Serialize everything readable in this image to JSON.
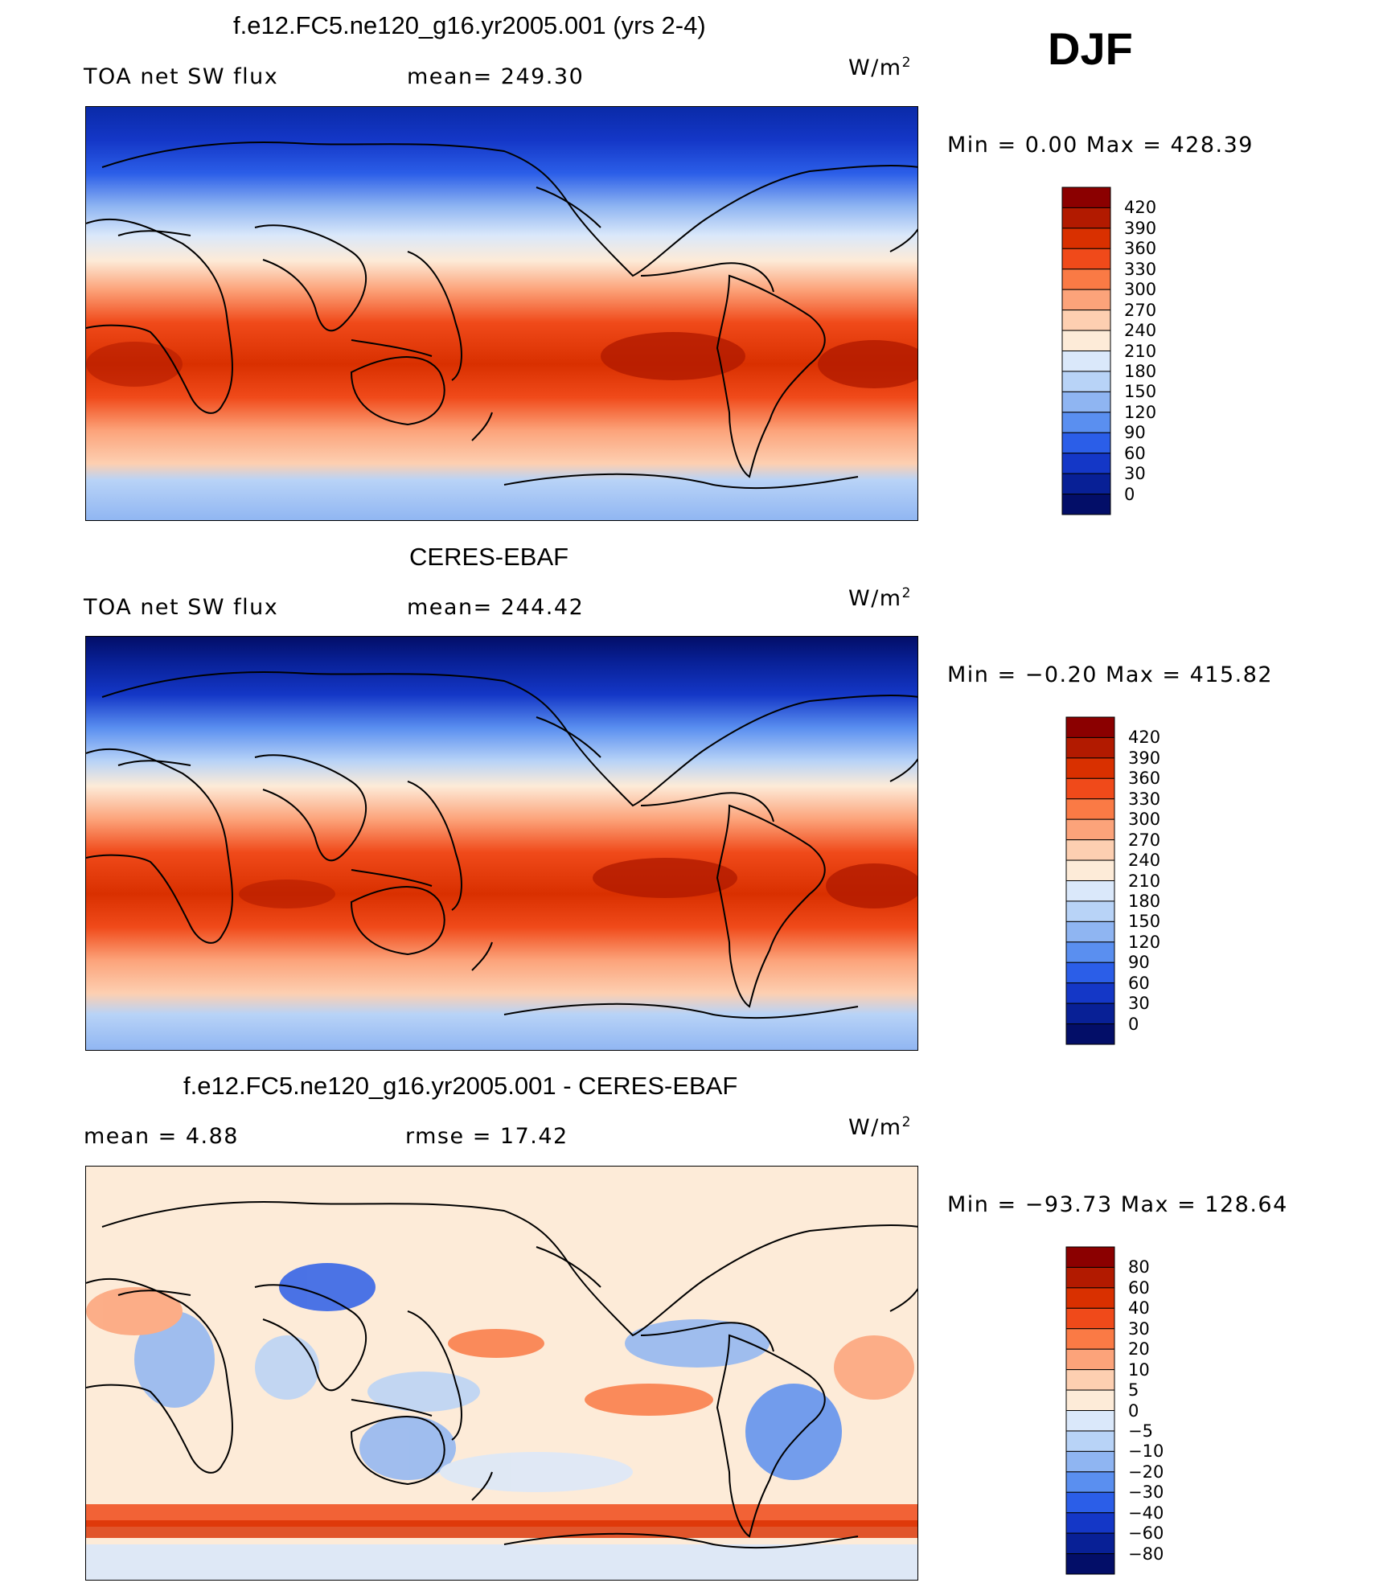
{
  "season": "DJF",
  "panels": [
    {
      "title": "f.e12.FC5.ne120_g16.yr2005.001 (yrs 2-4)",
      "left_label": "TOA net SW flux",
      "center_label": "mean= 249.30",
      "units": "W/m",
      "units_sup": "2",
      "minmax": "Min =    0.00 Max = 428.39"
    },
    {
      "title": "CERES-EBAF",
      "left_label": "TOA net SW flux",
      "center_label": "mean= 244.42",
      "units": "W/m",
      "units_sup": "2",
      "minmax": "Min =  −0.20 Max = 415.82"
    },
    {
      "title": "f.e12.FC5.ne120_g16.yr2005.001 - CERES-EBAF",
      "left_label": "mean =    4.88",
      "center_label": "rmse =   17.42",
      "units": "W/m",
      "units_sup": "2",
      "minmax": "Min = −93.73 Max = 128.64"
    }
  ],
  "chart_data": [
    {
      "type": "heatmap",
      "title": "f.e12.FC5.ne120_g16.yr2005.001 (yrs 2-4)",
      "variable": "TOA net SW flux",
      "mean": 249.3,
      "units": "W/m2",
      "min": 0.0,
      "max": 428.39,
      "colorbar_levels": [
        "420",
        "390",
        "360",
        "330",
        "300",
        "270",
        "240",
        "210",
        "180",
        "150",
        "120",
        "90",
        "60",
        "30",
        "0"
      ],
      "colorbar_colors": [
        "#8b0000",
        "#b21a00",
        "#d93000",
        "#f04a1a",
        "#fa7a45",
        "#fca37a",
        "#fdcfb1",
        "#fdebd8",
        "#dae8fa",
        "#b8d3f7",
        "#8fb5f2",
        "#5a8ff0",
        "#2b5ee8",
        "#1437c7",
        "#082096",
        "#030e68"
      ]
    },
    {
      "type": "heatmap",
      "title": "CERES-EBAF",
      "variable": "TOA net SW flux",
      "mean": 244.42,
      "units": "W/m2",
      "min": -0.2,
      "max": 415.82,
      "colorbar_levels": [
        "420",
        "390",
        "360",
        "330",
        "300",
        "270",
        "240",
        "210",
        "180",
        "150",
        "120",
        "90",
        "60",
        "30",
        "0"
      ],
      "colorbar_colors": [
        "#8b0000",
        "#b21a00",
        "#d93000",
        "#f04a1a",
        "#fa7a45",
        "#fca37a",
        "#fdcfb1",
        "#fdebd8",
        "#dae8fa",
        "#b8d3f7",
        "#8fb5f2",
        "#5a8ff0",
        "#2b5ee8",
        "#1437c7",
        "#082096",
        "#030e68"
      ]
    },
    {
      "type": "heatmap",
      "title": "f.e12.FC5.ne120_g16.yr2005.001 - CERES-EBAF",
      "mean": 4.88,
      "rmse": 17.42,
      "units": "W/m2",
      "min": -93.73,
      "max": 128.64,
      "colorbar_levels": [
        "80",
        "60",
        "40",
        "30",
        "20",
        "10",
        "5",
        "0",
        "−5",
        "−10",
        "−20",
        "−30",
        "−40",
        "−60",
        "−80"
      ],
      "colorbar_colors": [
        "#8b0000",
        "#b21a00",
        "#d93000",
        "#f04a1a",
        "#fa7a45",
        "#fca37a",
        "#fdcfb1",
        "#fdebd8",
        "#dae8fa",
        "#b8d3f7",
        "#8fb5f2",
        "#5a8ff0",
        "#2b5ee8",
        "#1437c7",
        "#082096",
        "#030e68"
      ]
    }
  ]
}
